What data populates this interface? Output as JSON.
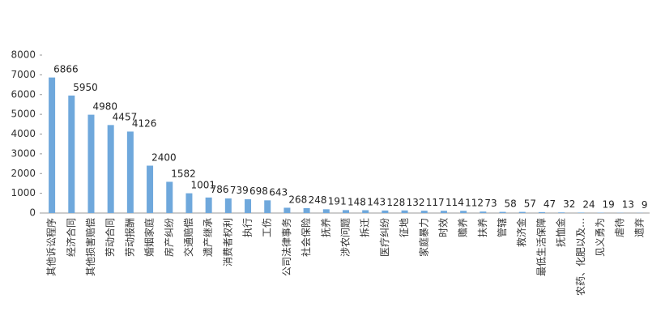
{
  "chart_data": {
    "type": "bar",
    "categories": [
      "其他诉讼程序",
      "经济合同",
      "其他损害赔偿",
      "劳动合同",
      "劳动报酬",
      "婚姻家庭",
      "房产纠纷",
      "交通赔偿",
      "遗产继承",
      "消费者权利",
      "执行",
      "工伤",
      "公司法律事务",
      "社会保险",
      "抚养",
      "涉农问题",
      "拆迁",
      "医疗纠纷",
      "征地",
      "家庭暴力",
      "时效",
      "赡养",
      "扶养",
      "管辖",
      "救济金",
      "最低生活保障",
      "抚恤金",
      "农药、化肥以及…",
      "见义勇为",
      "虐待",
      "遗弃"
    ],
    "values": [
      6866,
      5950,
      4980,
      4457,
      4126,
      2400,
      1582,
      1001,
      786,
      739,
      698,
      643,
      268,
      248,
      191,
      148,
      143,
      128,
      132,
      117,
      114,
      112,
      73,
      58,
      57,
      47,
      32,
      24,
      19,
      13,
      9
    ],
    "color": "#6fa8dc",
    "ylim": [
      0,
      8000
    ],
    "yticks": [
      0,
      1000,
      2000,
      3000,
      4000,
      5000,
      6000,
      7000,
      8000
    ]
  }
}
